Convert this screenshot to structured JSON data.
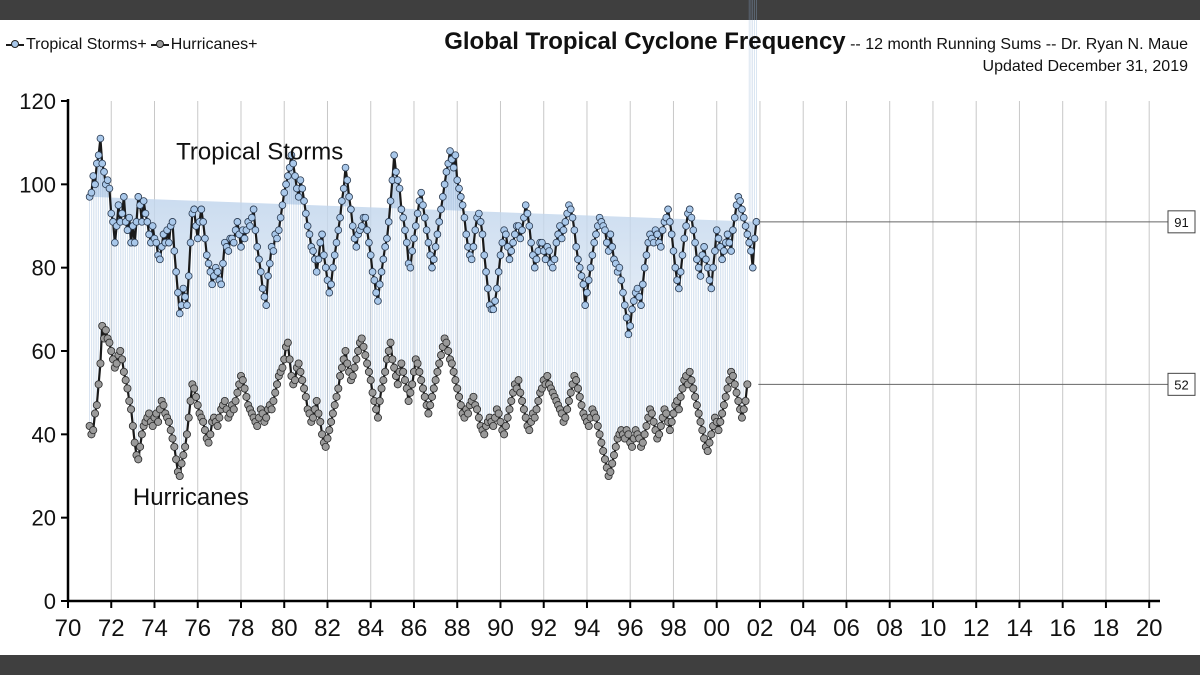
{
  "colors": {
    "background": "#ffffff",
    "frame_bar": "#3f3f3f",
    "storm_marker": "#a9c8ea",
    "storm_line": "#1a1a1a",
    "hurricane_marker": "#9a9a9a",
    "fill": "#c3d6ec",
    "gridline": "#c8c8c8",
    "axis": "#000000"
  },
  "chart_data": {
    "type": "line",
    "title": "Global Tropical Cyclone Frequency",
    "title_suffix": "-- 12 month Running Sums -- Dr. Ryan N. Maue",
    "subtitle": "Updated December 31, 2019",
    "xlabel": "",
    "ylabel": "",
    "xlim": [
      1970,
      2020.5
    ],
    "ylim": [
      0,
      120
    ],
    "y_ticks": [
      0,
      20,
      40,
      60,
      80,
      100,
      120
    ],
    "x_ticks": [
      1970,
      1972,
      1974,
      1976,
      1978,
      1980,
      1982,
      1984,
      1986,
      1988,
      1990,
      1992,
      1994,
      1996,
      1998,
      2000,
      2002,
      2004,
      2006,
      2008,
      2010,
      2012,
      2014,
      2016,
      2018,
      2020
    ],
    "x_tick_labels": [
      "70",
      "72",
      "74",
      "76",
      "78",
      "80",
      "82",
      "84",
      "86",
      "88",
      "90",
      "92",
      "94",
      "96",
      "98",
      "00",
      "02",
      "04",
      "06",
      "08",
      "10",
      "12",
      "14",
      "16",
      "18",
      "20"
    ],
    "grid": "vertical",
    "legend": [
      "Tropical Storms+",
      "Hurricanes+"
    ],
    "legend_position": "top-left",
    "annotations": [
      {
        "text": "Tropical Storms",
        "x": 1975,
        "y": 106
      },
      {
        "text": "Hurricanes",
        "x": 1973,
        "y": 23
      }
    ],
    "end_labels": [
      {
        "series": "Tropical Storms+",
        "value": "91"
      },
      {
        "series": "Hurricanes+",
        "value": "52"
      }
    ],
    "x_start": 1971.0,
    "x_step": 0.0833333,
    "series": [
      {
        "name": "Tropical Storms+",
        "values": [
          97,
          98,
          102,
          100,
          105,
          107,
          111,
          105,
          103,
          100,
          101,
          99,
          93,
          91,
          86,
          90,
          95,
          91,
          93,
          97,
          91,
          89,
          92,
          86,
          90,
          86,
          91,
          97,
          95,
          91,
          96,
          93,
          91,
          88,
          86,
          90,
          87,
          86,
          83,
          82,
          85,
          88,
          86,
          89,
          86,
          90,
          91,
          84,
          79,
          74,
          69,
          71,
          75,
          73,
          71,
          78,
          86,
          93,
          94,
          90,
          87,
          91,
          94,
          91,
          87,
          83,
          81,
          79,
          76,
          78,
          80,
          79,
          77,
          76,
          81,
          86,
          85,
          84,
          87,
          87,
          86,
          89,
          91,
          88,
          85,
          89,
          87,
          89,
          91,
          90,
          92,
          94,
          89,
          85,
          82,
          79,
          75,
          73,
          71,
          78,
          81,
          85,
          84,
          88,
          87,
          89,
          92,
          95,
          98,
          100,
          102,
          104,
          107,
          105,
          102,
          99,
          97,
          101,
          99,
          96,
          93,
          90,
          88,
          85,
          84,
          82,
          79,
          82,
          86,
          88,
          83,
          80,
          77,
          74,
          76,
          80,
          83,
          86,
          89,
          92,
          96,
          99,
          104,
          101,
          97,
          94,
          90,
          87,
          85,
          88,
          89,
          90,
          92,
          92,
          89,
          86,
          83,
          79,
          77,
          74,
          72,
          76,
          79,
          82,
          85,
          87,
          91,
          96,
          101,
          107,
          103,
          101,
          99,
          94,
          92,
          89,
          86,
          81,
          80,
          84,
          87,
          90,
          93,
          96,
          98,
          95,
          92,
          89,
          86,
          83,
          80,
          82,
          85,
          88,
          91,
          94,
          97,
          100,
          103,
          105,
          108,
          106,
          104,
          107,
          101,
          99,
          97,
          95,
          92,
          88,
          85,
          83,
          82,
          85,
          89,
          92,
          93,
          91,
          88,
          83,
          79,
          75,
          71,
          70,
          70,
          72,
          75,
          79,
          83,
          86,
          89,
          88,
          85,
          82,
          84,
          86,
          88,
          90,
          90,
          87,
          89,
          92,
          95,
          93,
          90,
          86,
          83,
          80,
          82,
          84,
          86,
          86,
          84,
          82,
          85,
          84,
          81,
          80,
          82,
          86,
          88,
          90,
          87,
          89,
          91,
          93,
          95,
          94,
          92,
          89,
          85,
          82,
          80,
          78,
          76,
          71,
          74,
          77,
          80,
          83,
          86,
          88,
          90,
          92,
          91,
          90,
          89,
          86,
          84,
          88,
          85,
          82,
          81,
          79,
          80,
          77,
          74,
          71,
          68,
          64,
          66,
          70,
          72,
          74,
          75,
          73,
          71,
          76,
          80,
          83,
          86,
          88,
          87,
          86,
          89,
          88,
          86,
          85,
          89,
          91,
          92,
          94,
          91,
          88,
          84,
          80,
          77,
          75,
          79,
          83,
          87,
          90,
          93,
          94,
          92,
          89,
          86,
          82,
          80,
          78,
          83,
          85,
          82,
          80,
          77,
          75,
          80,
          84,
          89,
          87,
          85,
          82,
          84,
          86,
          88,
          86,
          84,
          89,
          92,
          95,
          97,
          96,
          94,
          92,
          90,
          88,
          86,
          84,
          80,
          87,
          91
        ]
      },
      {
        "name": "Hurricanes+",
        "values": [
          42,
          40,
          41,
          45,
          47,
          52,
          57,
          66,
          63,
          65,
          63,
          62,
          60,
          58,
          56,
          57,
          59,
          60,
          58,
          55,
          53,
          51,
          48,
          46,
          42,
          38,
          35,
          34,
          37,
          40,
          42,
          43,
          44,
          45,
          43,
          42,
          44,
          45,
          43,
          46,
          48,
          47,
          45,
          44,
          43,
          41,
          39,
          37,
          34,
          31,
          30,
          33,
          35,
          37,
          40,
          44,
          48,
          52,
          51,
          49,
          47,
          45,
          44,
          43,
          41,
          39,
          38,
          40,
          43,
          44,
          43,
          42,
          44,
          46,
          47,
          48,
          46,
          44,
          45,
          47,
          46,
          48,
          50,
          52,
          54,
          53,
          51,
          49,
          47,
          46,
          45,
          44,
          43,
          42,
          44,
          46,
          45,
          43,
          44,
          46,
          47,
          46,
          48,
          50,
          52,
          54,
          55,
          56,
          58,
          61,
          62,
          58,
          54,
          52,
          53,
          56,
          57,
          55,
          53,
          51,
          49,
          46,
          45,
          43,
          44,
          46,
          48,
          45,
          43,
          40,
          38,
          37,
          39,
          41,
          43,
          45,
          47,
          49,
          51,
          54,
          56,
          58,
          60,
          57,
          55,
          53,
          54,
          56,
          58,
          60,
          62,
          63,
          61,
          59,
          57,
          55,
          53,
          50,
          48,
          46,
          44,
          48,
          51,
          53,
          55,
          58,
          60,
          62,
          58,
          56,
          54,
          52,
          55,
          57,
          55,
          53,
          51,
          48,
          50,
          52,
          55,
          58,
          57,
          55,
          53,
          51,
          49,
          47,
          45,
          47,
          49,
          51,
          53,
          55,
          57,
          59,
          61,
          63,
          62,
          60,
          58,
          57,
          55,
          53,
          51,
          49,
          47,
          45,
          44,
          46,
          45,
          47,
          48,
          49,
          47,
          46,
          44,
          42,
          41,
          40,
          42,
          43,
          44,
          43,
          42,
          44,
          46,
          45,
          43,
          41,
          40,
          42,
          44,
          46,
          48,
          50,
          52,
          51,
          53,
          50,
          48,
          46,
          44,
          42,
          41,
          43,
          45,
          44,
          46,
          48,
          50,
          51,
          53,
          52,
          54,
          52,
          51,
          50,
          49,
          48,
          47,
          46,
          45,
          43,
          44,
          46,
          48,
          50,
          52,
          54,
          53,
          51,
          49,
          47,
          45,
          44,
          43,
          42,
          44,
          46,
          45,
          44,
          42,
          40,
          38,
          36,
          34,
          32,
          30,
          31,
          33,
          35,
          37,
          39,
          40,
          41,
          40,
          39,
          41,
          40,
          38,
          37,
          39,
          41,
          40,
          39,
          37,
          38,
          40,
          42,
          44,
          46,
          45,
          43,
          41,
          39,
          40,
          42,
          44,
          46,
          45,
          43,
          41,
          43,
          45,
          47,
          48,
          46,
          49,
          51,
          53,
          54,
          52,
          55,
          53,
          51,
          49,
          47,
          45,
          43,
          41,
          39,
          37,
          36,
          38,
          40,
          42,
          44,
          43,
          41,
          43,
          45,
          47,
          49,
          51,
          53,
          55,
          54,
          52,
          50,
          48,
          46,
          44,
          46,
          48,
          52
        ]
      }
    ]
  }
}
